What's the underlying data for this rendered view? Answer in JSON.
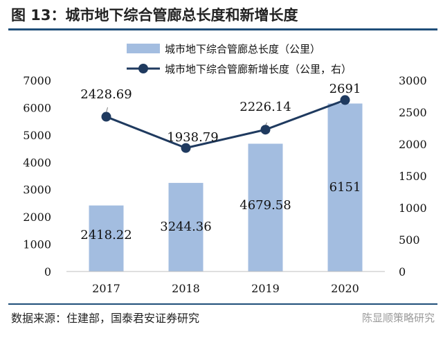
{
  "header": {
    "title": "图 13：城市地下综合管廊总长度和新增长度"
  },
  "footer": {
    "source": "数据来源：住建部，国泰君安证券研究",
    "watermark": "陈显顺策略研究"
  },
  "colors": {
    "bar": "#a3bde0",
    "line": "#1f3a5f",
    "rule": "#1f4e79"
  },
  "chart_data": {
    "type": "bar",
    "categories": [
      "2017",
      "2018",
      "2019",
      "2020"
    ],
    "series": [
      {
        "name": "城市地下综合管廊总长度（公里）",
        "type": "bar",
        "axis": "left",
        "values": [
          2418.22,
          3244.36,
          4679.58,
          6151
        ],
        "labels": [
          "2418.22",
          "3244.36",
          "4679.58",
          "6151"
        ]
      },
      {
        "name": "城市地下综合管廊新增长度（公里，右）",
        "type": "line",
        "axis": "right",
        "values": [
          2428.69,
          1938.79,
          2226.14,
          2691
        ],
        "labels": [
          "2428.69",
          "1938.79",
          "2226.14",
          "2691"
        ]
      }
    ],
    "y_left": {
      "min": 0,
      "max": 7000,
      "step": 1000
    },
    "y_right": {
      "min": 0,
      "max": 3000,
      "step": 500
    },
    "legend": "top",
    "grid": false
  }
}
